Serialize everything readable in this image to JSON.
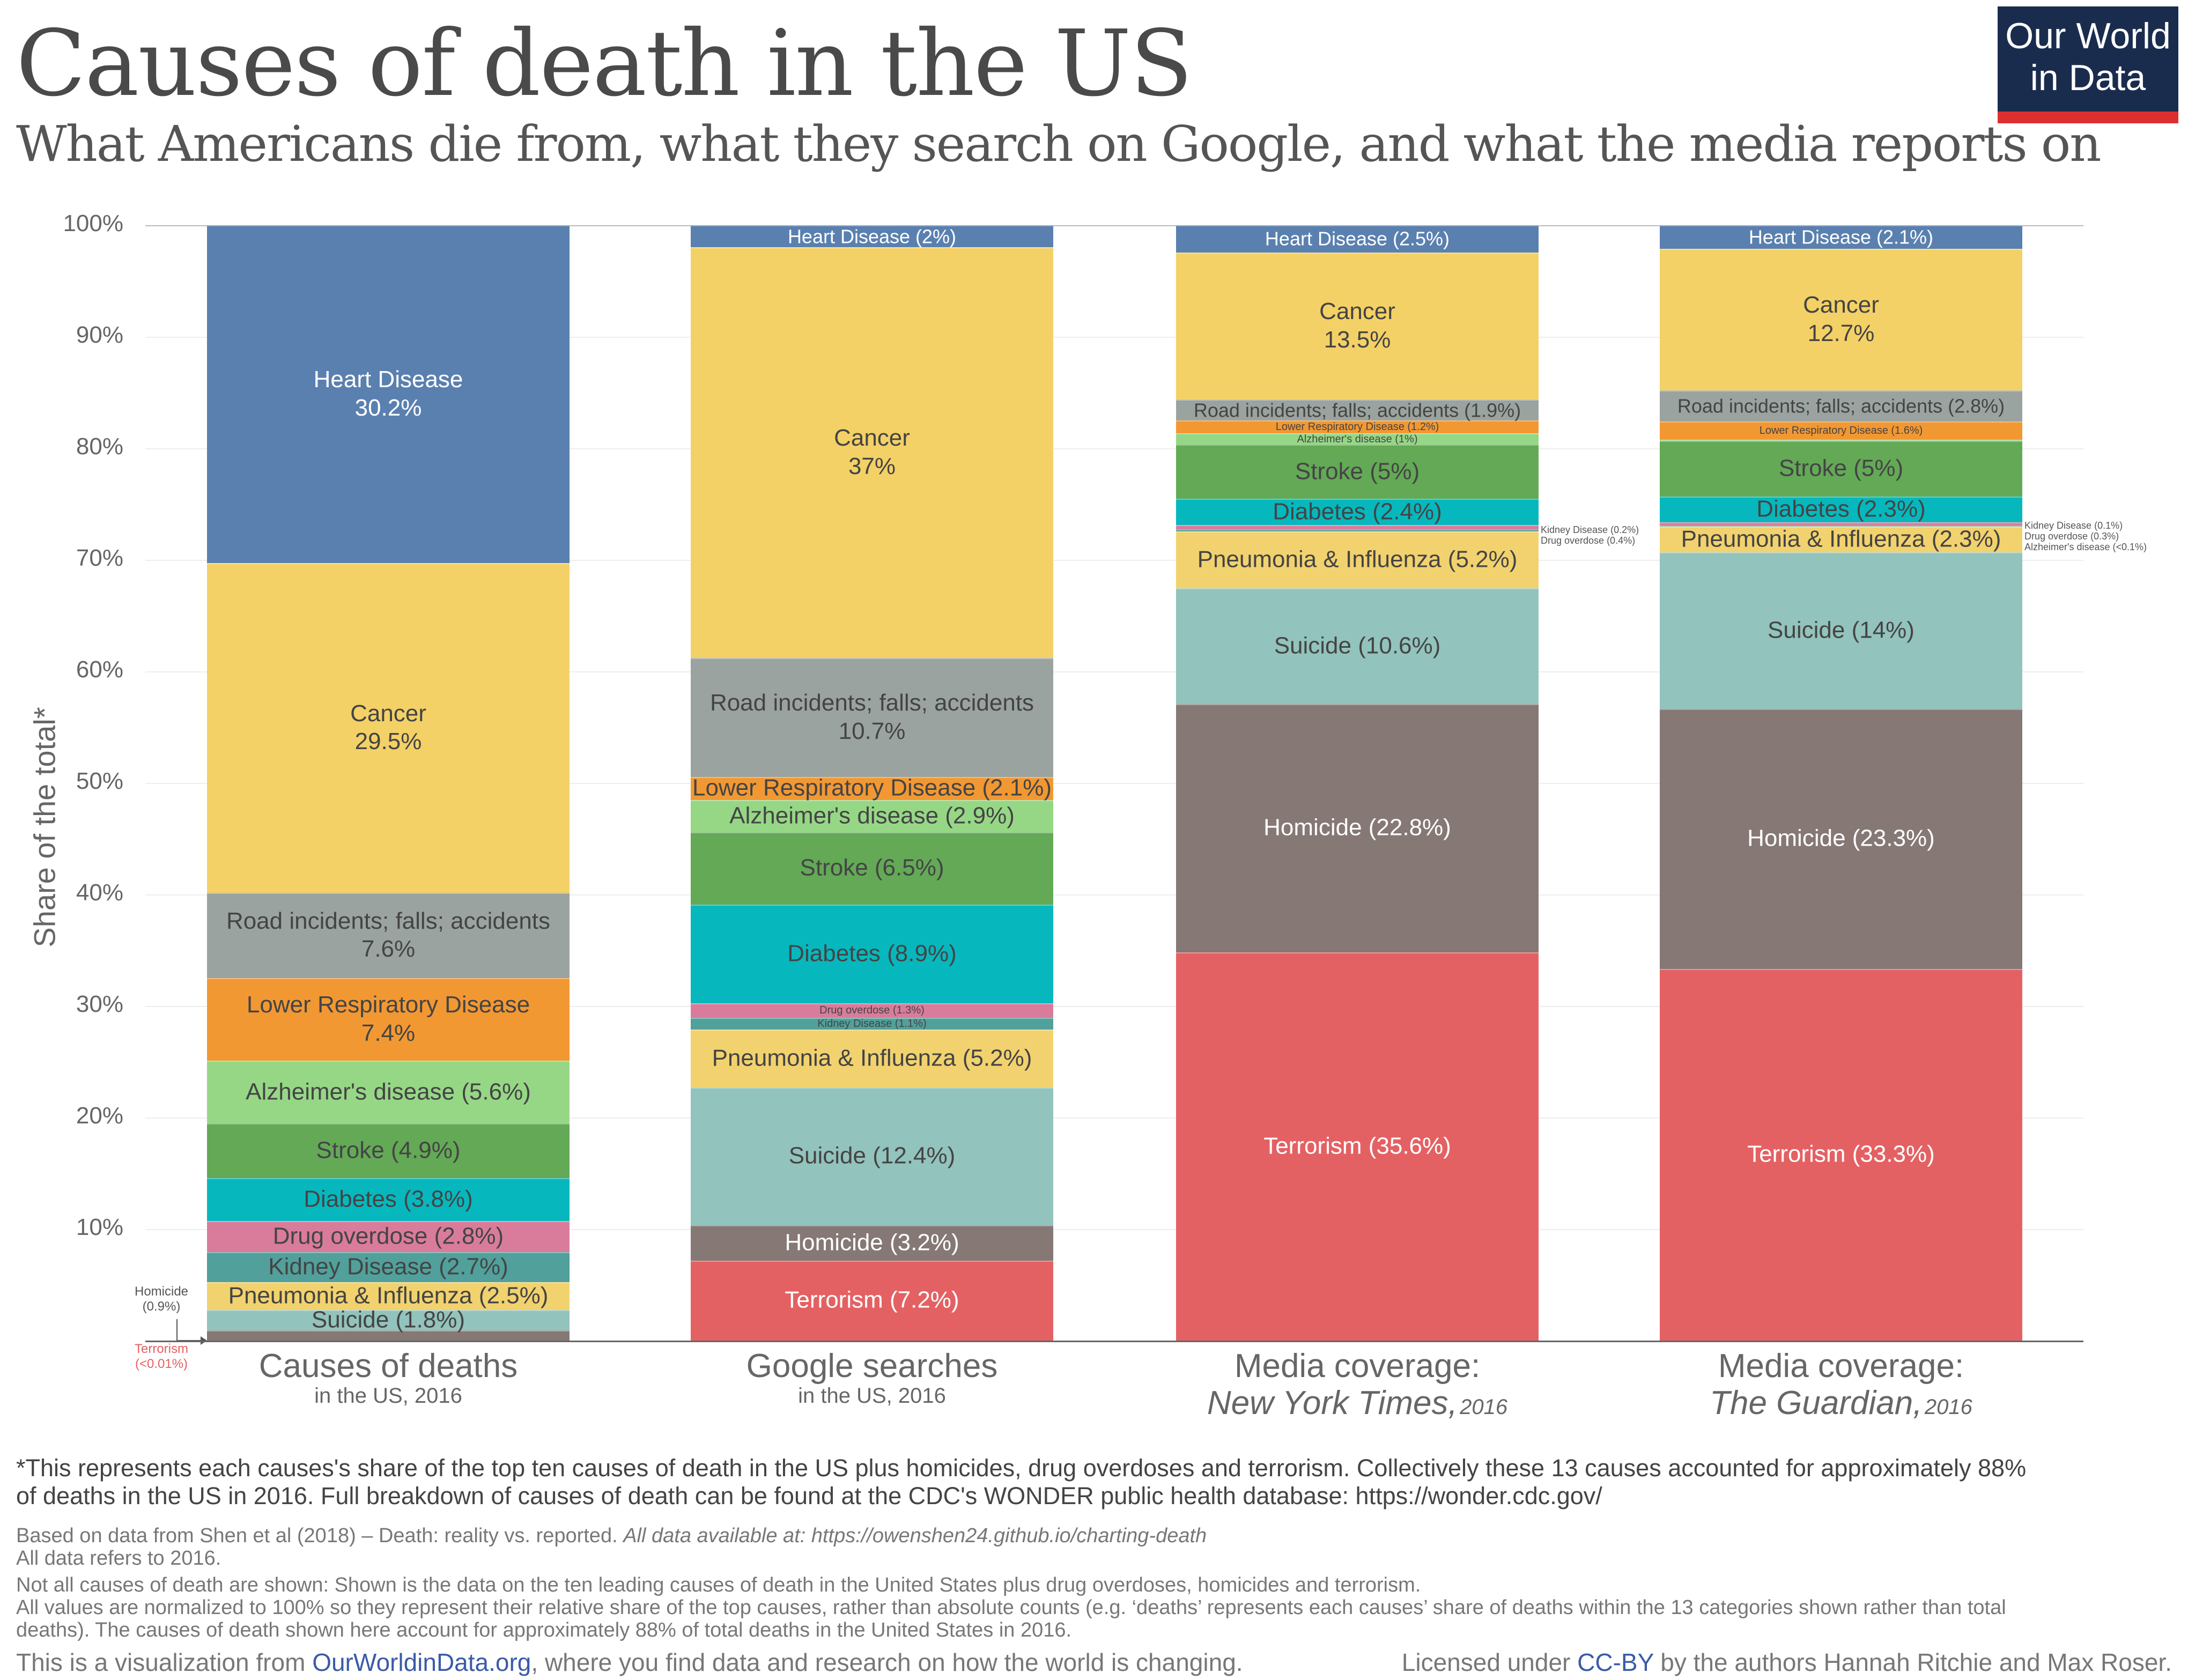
{
  "title": "Causes of death in the US",
  "subtitle": "What Americans die from, what they search on Google, and what the media reports on",
  "logo": {
    "line1": "Our World",
    "line2": "in Data",
    "bg": "#1a2c4e",
    "accent": "#dc3030"
  },
  "chart_data": {
    "type": "bar",
    "stacked": true,
    "normalized_to": 100,
    "ylabel": "Share of the total*",
    "ylim": [
      0,
      100
    ],
    "yticks": [
      "100%",
      "90%",
      "80%",
      "70%",
      "60%",
      "50%",
      "40%",
      "30%",
      "20%",
      "10%"
    ],
    "grid": true,
    "colors": {
      "Terrorism": "#e46163",
      "Homicide": "#857875",
      "Suicide": "#92c3bc",
      "Pneumonia & Influenza": "#f2d26e",
      "Kidney Disease": "#51a09b",
      "Drug overdose": "#d97c9b",
      "Diabetes": "#06b8bd",
      "Stroke": "#63a956",
      "Alzheimer's disease": "#96d786",
      "Lower Respiratory Disease": "#f29833",
      "Road incidents; falls; accidents": "#9ba3a0",
      "Cancer": "#f4d166",
      "Heart Disease": "#5a80b0"
    },
    "columns": [
      {
        "title": "Causes of deaths",
        "subtitle": "in the US, 2016",
        "subtitle_year": "",
        "segments": [
          {
            "cause": "Terrorism",
            "value": 0.01,
            "label": "Terrorism\n(<0.01%)",
            "placement": "below-left"
          },
          {
            "cause": "Homicide",
            "value": 0.9,
            "label": "Homicide\n(0.9%)",
            "placement": "left"
          },
          {
            "cause": "Suicide",
            "value": 1.8,
            "label": "Suicide (1.8%)"
          },
          {
            "cause": "Pneumonia & Influenza",
            "value": 2.5,
            "label": "Pneumonia & Influenza (2.5%)"
          },
          {
            "cause": "Kidney Disease",
            "value": 2.7,
            "label": "Kidney Disease (2.7%)"
          },
          {
            "cause": "Drug overdose",
            "value": 2.8,
            "label": "Drug overdose (2.8%)"
          },
          {
            "cause": "Diabetes",
            "value": 3.8,
            "label": "Diabetes (3.8%)"
          },
          {
            "cause": "Stroke",
            "value": 4.9,
            "label": "Stroke (4.9%)"
          },
          {
            "cause": "Alzheimer's disease",
            "value": 5.6,
            "label": "Alzheimer's disease (5.6%)"
          },
          {
            "cause": "Lower Respiratory Disease",
            "value": 7.4,
            "label": "Lower Respiratory Disease\n7.4%"
          },
          {
            "cause": "Road incidents; falls; accidents",
            "value": 7.6,
            "label": "Road incidents; falls; accidents\n7.6%"
          },
          {
            "cause": "Cancer",
            "value": 29.5,
            "label": "Cancer\n29.5%"
          },
          {
            "cause": "Heart Disease",
            "value": 30.2,
            "label": "Heart Disease\n30.2%"
          }
        ]
      },
      {
        "title": "Google searches",
        "subtitle": "in the US, 2016",
        "subtitle_year": "",
        "segments": [
          {
            "cause": "Terrorism",
            "value": 7.2,
            "label": "Terrorism (7.2%)"
          },
          {
            "cause": "Homicide",
            "value": 3.2,
            "label": "Homicide (3.2%)"
          },
          {
            "cause": "Suicide",
            "value": 12.4,
            "label": "Suicide (12.4%)"
          },
          {
            "cause": "Pneumonia & Influenza",
            "value": 5.2,
            "label": "Pneumonia & Influenza (5.2%)"
          },
          {
            "cause": "Kidney Disease",
            "value": 1.1,
            "label": "Kidney Disease (1.1%)",
            "small": true
          },
          {
            "cause": "Drug overdose",
            "value": 1.3,
            "label": "Drug overdose (1.3%)",
            "small": true
          },
          {
            "cause": "Diabetes",
            "value": 8.9,
            "label": "Diabetes (8.9%)"
          },
          {
            "cause": "Stroke",
            "value": 6.5,
            "label": "Stroke (6.5%)"
          },
          {
            "cause": "Alzheimer's disease",
            "value": 2.9,
            "label": "Alzheimer's disease (2.9%)"
          },
          {
            "cause": "Lower Respiratory Disease",
            "value": 2.1,
            "label": "Lower Respiratory Disease (2.1%)"
          },
          {
            "cause": "Road incidents; falls; accidents",
            "value": 10.7,
            "label": "Road incidents; falls; accidents\n10.7%"
          },
          {
            "cause": "Cancer",
            "value": 37,
            "label": "Cancer\n37%"
          },
          {
            "cause": "Heart Disease",
            "value": 2,
            "label": "Heart Disease (2%)",
            "medium": true
          }
        ]
      },
      {
        "title": "Media coverage:",
        "subtitle": "New York Times,",
        "subtitle_year": "2016",
        "segments": [
          {
            "cause": "Terrorism",
            "value": 35.6,
            "label": "Terrorism (35.6%)"
          },
          {
            "cause": "Homicide",
            "value": 22.8,
            "label": "Homicide (22.8%)"
          },
          {
            "cause": "Suicide",
            "value": 10.6,
            "label": "Suicide (10.6%)"
          },
          {
            "cause": "Pneumonia & Influenza",
            "value": 5.2,
            "label": "Pneumonia & Influenza (5.2%)"
          },
          {
            "cause": "Kidney Disease",
            "value": 0.2,
            "label": "Kidney Disease (0.2%)",
            "placement": "right"
          },
          {
            "cause": "Drug overdose",
            "value": 0.4,
            "label": "Drug overdose (0.4%)",
            "placement": "right"
          },
          {
            "cause": "Diabetes",
            "value": 2.4,
            "label": "Diabetes (2.4%)"
          },
          {
            "cause": "Stroke",
            "value": 5,
            "label": "Stroke (5%)"
          },
          {
            "cause": "Alzheimer's disease",
            "value": 1,
            "label": "Alzheimer's disease (1%)",
            "small": true
          },
          {
            "cause": "Lower Respiratory Disease",
            "value": 1.2,
            "label": "Lower Respiratory Disease (1.2%)",
            "small": true
          },
          {
            "cause": "Road incidents; falls; accidents",
            "value": 1.9,
            "label": "Road incidents; falls; accidents (1.9%)",
            "medium": true
          },
          {
            "cause": "Cancer",
            "value": 13.5,
            "label": "Cancer\n13.5%"
          },
          {
            "cause": "Heart Disease",
            "value": 2.5,
            "label": "Heart Disease (2.5%)",
            "medium": true
          }
        ]
      },
      {
        "title": "Media coverage:",
        "subtitle": "The Guardian,",
        "subtitle_year": "2016",
        "segments": [
          {
            "cause": "Terrorism",
            "value": 33.3,
            "label": "Terrorism (33.3%)"
          },
          {
            "cause": "Homicide",
            "value": 23.3,
            "label": "Homicide (23.3%)"
          },
          {
            "cause": "Suicide",
            "value": 14,
            "label": "Suicide (14%)"
          },
          {
            "cause": "Pneumonia & Influenza",
            "value": 2.3,
            "label": "Pneumonia & Influenza (2.3%)"
          },
          {
            "cause": "Kidney Disease",
            "value": 0.1,
            "label": "Kidney Disease (0.1%)",
            "placement": "right"
          },
          {
            "cause": "Drug overdose",
            "value": 0.3,
            "label": "Drug overdose (0.3%)",
            "placement": "right"
          },
          {
            "cause": "Diabetes",
            "value": 2.3,
            "label": "Diabetes (2.3%)"
          },
          {
            "cause": "Stroke",
            "value": 5,
            "label": "Stroke (5%)"
          },
          {
            "cause": "Alzheimer's disease",
            "value": 0.1,
            "label": "Alzheimer's disease (<0.1%)",
            "placement": "right"
          },
          {
            "cause": "Lower Respiratory Disease",
            "value": 1.6,
            "label": "Lower Respiratory Disease (1.6%)",
            "small": true
          },
          {
            "cause": "Road incidents; falls; accidents",
            "value": 2.8,
            "label": "Road incidents; falls; accidents (2.8%)",
            "medium": true
          },
          {
            "cause": "Cancer",
            "value": 12.7,
            "label": "Cancer\n12.7%"
          },
          {
            "cause": "Heart Disease",
            "value": 2.1,
            "label": "Heart Disease (2.1%)",
            "medium": true
          }
        ]
      }
    ]
  },
  "footnote": {
    "line1": "*This represents each causes's share of the top ten causes of death in the US plus homicides, drug overdoses and terrorism. Collectively these 13 causes accounted for approximately 88%",
    "line2": "of deaths in the US in 2016. Full breakdown of causes of death can be found at the CDC's WONDER public health database: https://wonder.cdc.gov/"
  },
  "sources": {
    "based_on": "Based on data from Shen et al (2018) – Death: reality vs. reported. ",
    "available": "All data available at: https://owenshen24.github.io/charting-death",
    "refers": "All data refers to 2016.",
    "not_all": "Not all causes of death are shown: Shown is the data on the ten leading causes of death in the United States plus drug overdoses, homicides and terrorism.",
    "normalized1": "All values are normalized to 100% so they represent their relative share of the top causes, rather than absolute counts (e.g. ‘deaths’ represents each causes’ share of deaths within the 13 categories shown rather than total",
    "normalized2": "deaths). The causes of death shown here account for approximately 88% of total deaths in the United States in 2016."
  },
  "bottom": {
    "left_pre": "This is a visualization from ",
    "left_link": "OurWorldinData.org",
    "left_post": ", where you find data and research on how the world is changing.",
    "right_pre": "Licensed under ",
    "right_link": "CC-BY",
    "right_post": " by the authors Hannah Ritchie and Max Roser."
  }
}
